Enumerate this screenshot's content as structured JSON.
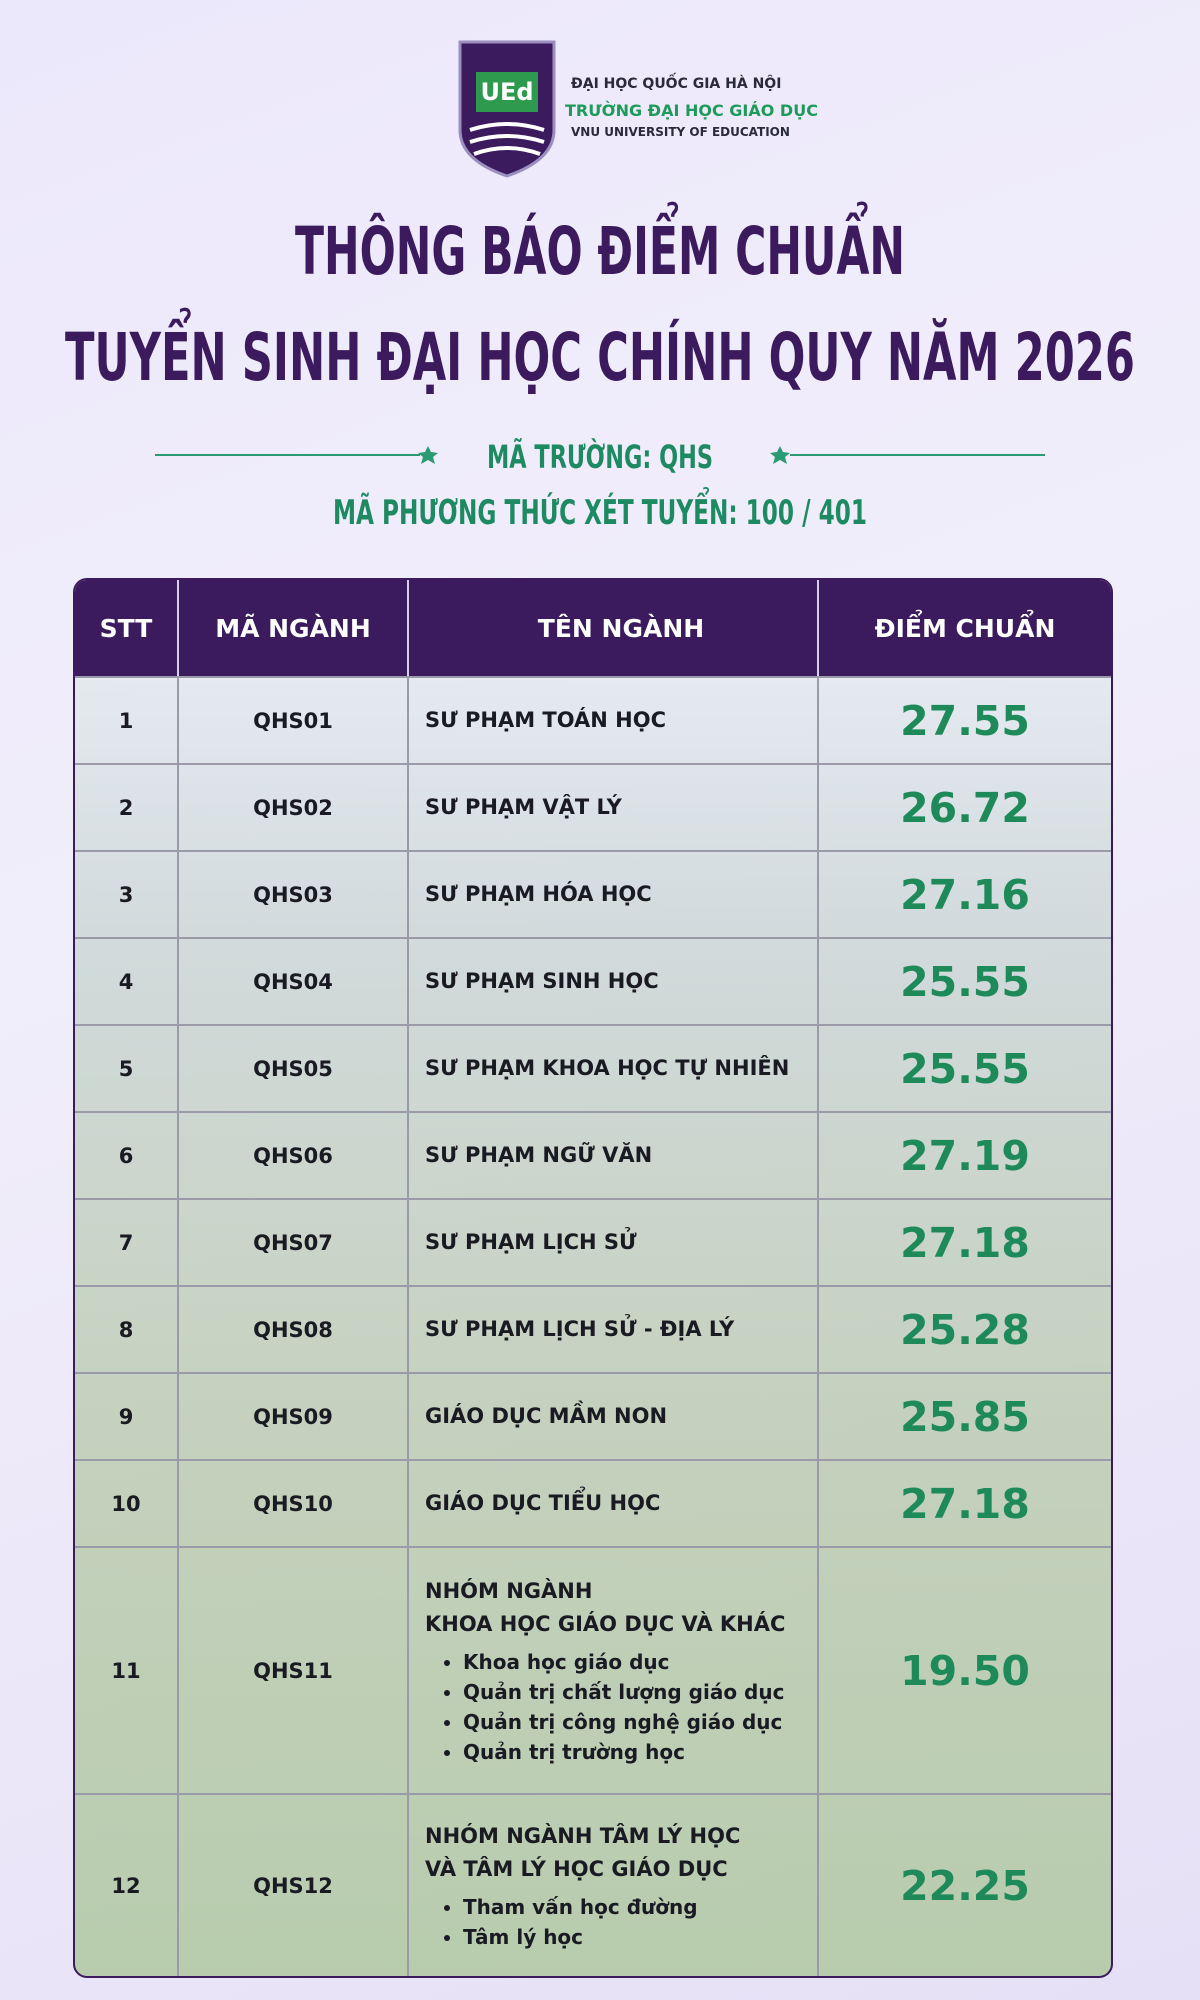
{
  "header": {
    "logo_mark": "UEd",
    "org_lines": [
      "ĐẠI HỌC QUỐC GIA HÀ NỘI",
      "TRƯỜNG ĐẠI HỌC GIÁO DỤC",
      "VNU UNIVERSITY OF EDUCATION"
    ],
    "title_lines": [
      "THÔNG BÁO ĐIỂM CHUẨN",
      "TUYỂN SINH ĐẠI HỌC CHÍNH QUY NĂM 2026"
    ],
    "school_code": "MÃ TRƯỜNG: QHS",
    "method_code": "MÃ PHƯƠNG THỨC XÉT TUYỂN: 100 / 401"
  },
  "table": {
    "columns": [
      "STT",
      "MÃ NGÀNH",
      "TÊN NGÀNH",
      "ĐIỂM CHUẨN"
    ],
    "rows": [
      {
        "stt": 1,
        "code": "QHS01",
        "name_lines": [
          "SƯ PHẠM TOÁN HỌC"
        ],
        "score": "27.55"
      },
      {
        "stt": 2,
        "code": "QHS02",
        "name_lines": [
          "SƯ PHẠM VẬT LÝ"
        ],
        "score": "26.72"
      },
      {
        "stt": 3,
        "code": "QHS03",
        "name_lines": [
          "SƯ PHẠM HÓA HỌC"
        ],
        "score": "27.16"
      },
      {
        "stt": 4,
        "code": "QHS04",
        "name_lines": [
          "SƯ PHẠM SINH HỌC"
        ],
        "score": "25.55"
      },
      {
        "stt": 5,
        "code": "QHS05",
        "name_lines": [
          "SƯ PHẠM KHOA HỌC TỰ NHIÊN"
        ],
        "score": "25.55"
      },
      {
        "stt": 6,
        "code": "QHS06",
        "name_lines": [
          "SƯ PHẠM NGỮ VĂN"
        ],
        "score": "27.19"
      },
      {
        "stt": 7,
        "code": "QHS07",
        "name_lines": [
          "SƯ PHẠM LỊCH SỬ"
        ],
        "score": "27.18"
      },
      {
        "stt": 8,
        "code": "QHS08",
        "name_lines": [
          "SƯ PHẠM LỊCH SỬ - ĐỊA LÝ"
        ],
        "score": "25.28"
      },
      {
        "stt": 9,
        "code": "QHS09",
        "name_lines": [
          "GIÁO DỤC MẦM NON"
        ],
        "score": "25.85"
      },
      {
        "stt": 10,
        "code": "QHS10",
        "name_lines": [
          "GIÁO DỤC TIỂU HỌC"
        ],
        "score": "27.18"
      },
      {
        "stt": 11,
        "code": "QHS11",
        "name_lines": [
          "NHÓM NGÀNH",
          "KHOA HỌC GIÁO DỤC VÀ KHÁC"
        ],
        "items": [
          "Khoa học giáo dục",
          "Quản trị chất lượng giáo dục",
          "Quản trị công nghệ giáo dục",
          "Quản trị trường học"
        ],
        "score": "19.50"
      },
      {
        "stt": 12,
        "code": "QHS12",
        "name_lines": [
          "NHÓM NGÀNH TÂM LÝ HỌC",
          "VÀ TÂM LÝ HỌC GIÁO DỤC"
        ],
        "items": [
          "Tham vấn học đường",
          "Tâm lý học"
        ],
        "score": "22.25"
      }
    ]
  }
}
